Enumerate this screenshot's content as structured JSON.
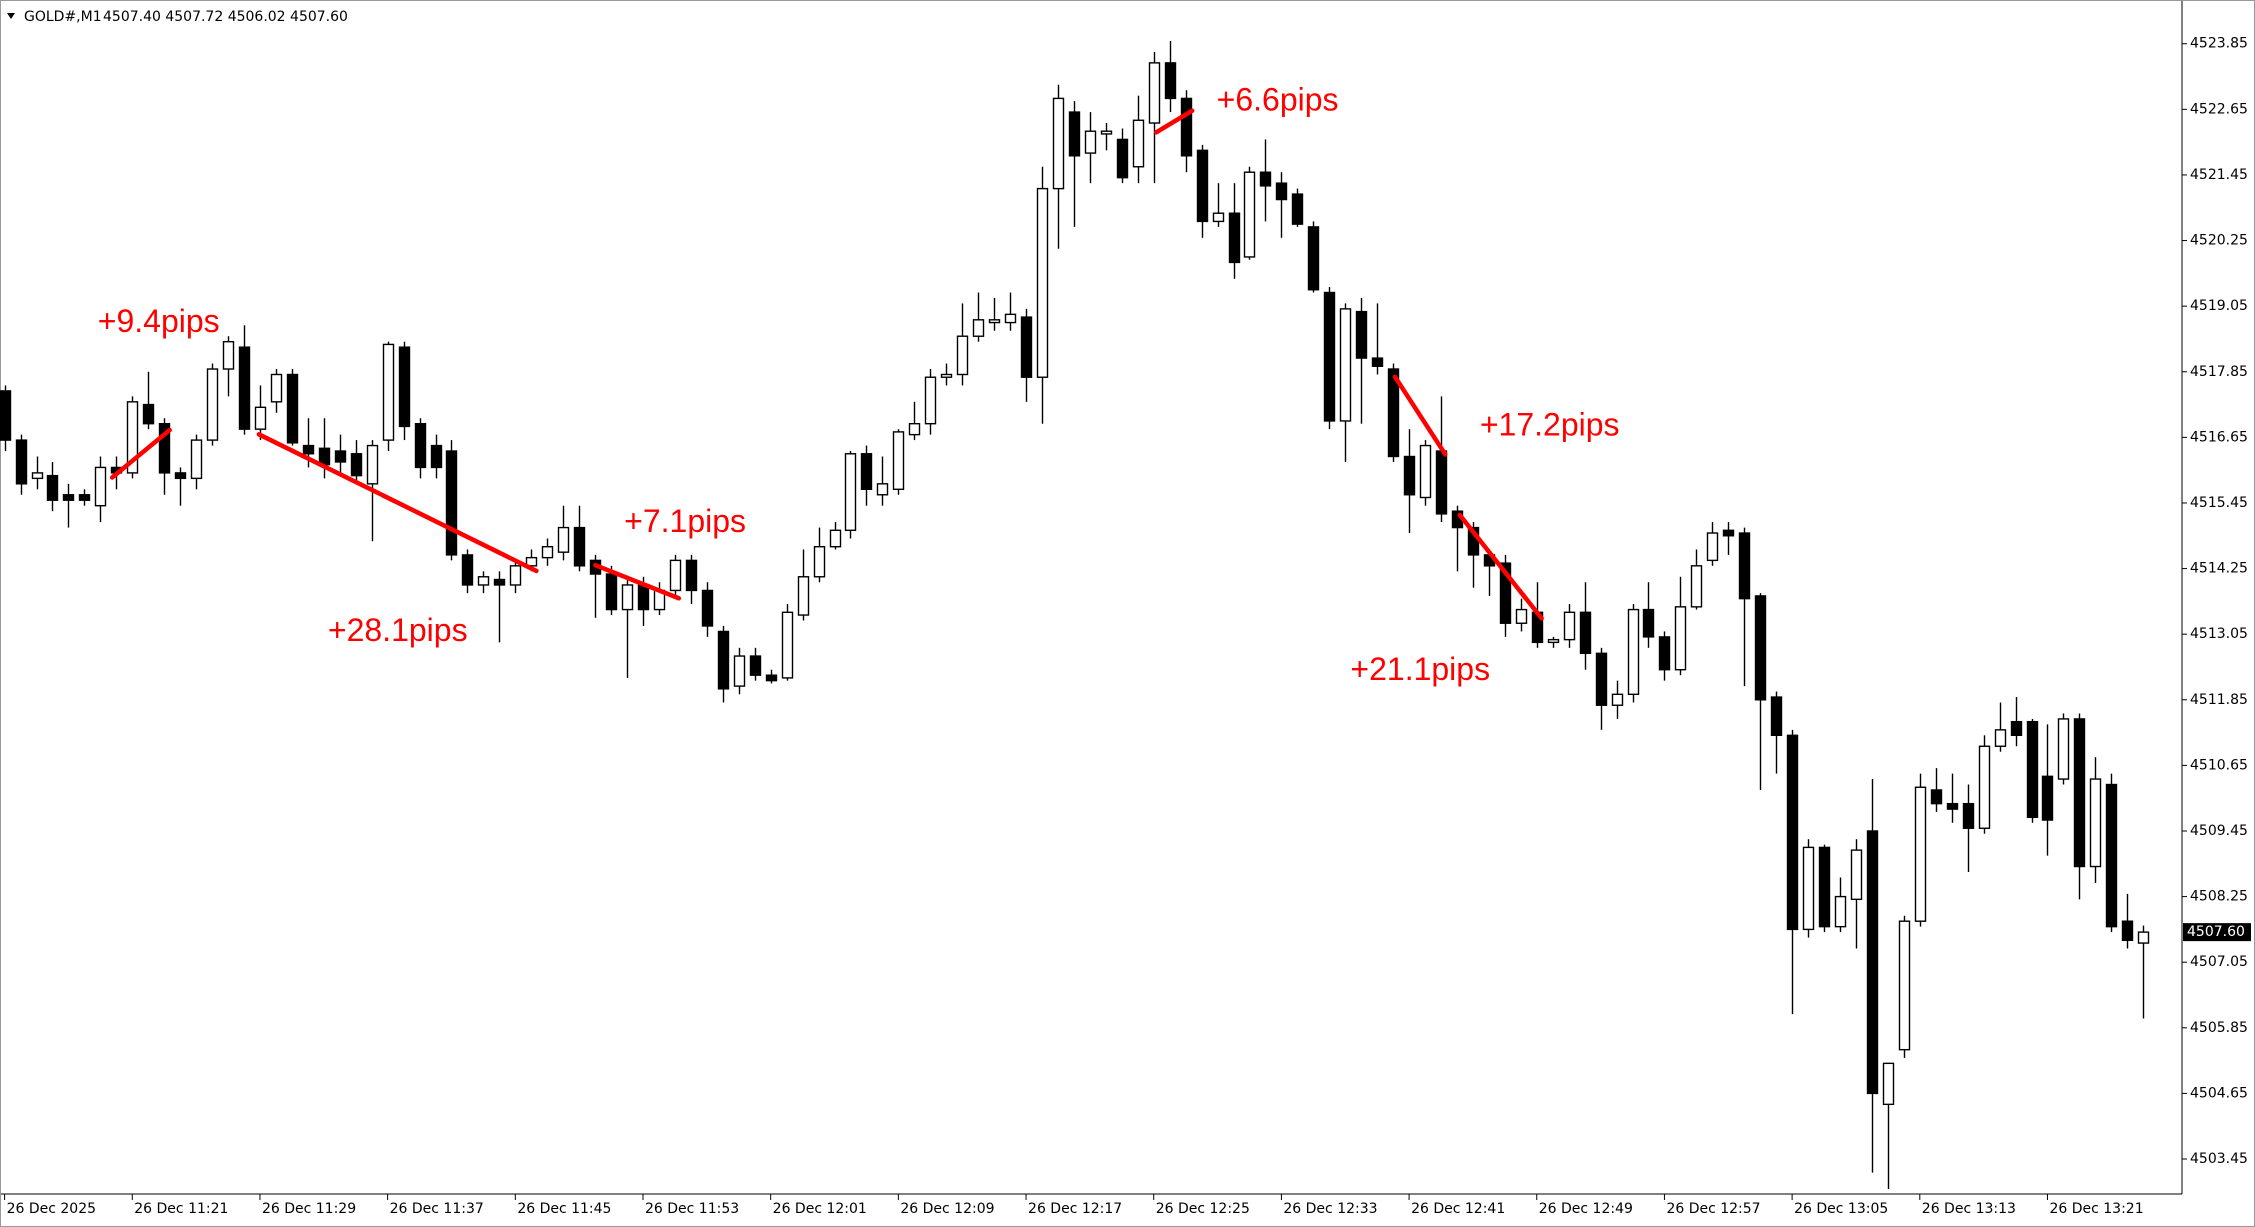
{
  "chart_data": {
    "type": "candlestick",
    "title": "GOLD#,M1",
    "subtitle": "4507.40 4507.72 4506.02 4507.60",
    "categories": [
      "26 Dec 2025",
      null,
      null,
      null,
      null,
      null,
      null,
      null,
      "26 Dec 11:21",
      null,
      null,
      null,
      null,
      null,
      null,
      null,
      "26 Dec 11:29",
      null,
      null,
      null,
      null,
      null,
      null,
      null,
      "26 Dec 11:37",
      null,
      null,
      null,
      null,
      null,
      null,
      null,
      "26 Dec 11:45",
      null,
      null,
      null,
      null,
      null,
      null,
      null,
      "26 Dec 11:53",
      null,
      null,
      null,
      null,
      null,
      null,
      null,
      "26 Dec 12:01",
      null,
      null,
      null,
      null,
      null,
      null,
      null,
      "26 Dec 12:09",
      null,
      null,
      null,
      null,
      null,
      null,
      null,
      "26 Dec 12:17",
      null,
      null,
      null,
      null,
      null,
      null,
      null,
      "26 Dec 12:25",
      null,
      null,
      null,
      null,
      null,
      null,
      null,
      "26 Dec 12:33",
      null,
      null,
      null,
      null,
      null,
      null,
      null,
      "26 Dec 12:41",
      null,
      null,
      null,
      null,
      null,
      null,
      null,
      "26 Dec 12:49",
      null,
      null,
      null,
      null,
      null,
      null,
      null,
      "26 Dec 12:57",
      null,
      null,
      null,
      null,
      null,
      null,
      null,
      "26 Dec 13:05",
      null,
      null,
      null,
      null,
      null,
      null,
      null,
      "26 Dec 13:13",
      null,
      null,
      null,
      null,
      null,
      null,
      null,
      "26 Dec 13:21",
      null,
      null,
      null,
      null,
      null,
      null
    ],
    "open": [
      4517.5,
      4516.6,
      4515.9,
      4515.95,
      4515.6,
      4515.6,
      4515.4,
      4516.1,
      4516.0,
      4517.25,
      4516.9,
      4516.0,
      4515.9,
      4516.6,
      4517.9,
      4518.3,
      4516.8,
      4517.3,
      4517.8,
      4516.5,
      4516.45,
      4516.4,
      4516.35,
      4515.8,
      4516.6,
      4518.3,
      4516.9,
      4516.5,
      4516.4,
      4514.5,
      4513.95,
      4514.05,
      4513.95,
      4514.3,
      4514.45,
      4514.55,
      4515.0,
      4514.4,
      4514.15,
      4513.5,
      4513.95,
      4513.5,
      4513.85,
      4514.4,
      4513.85,
      4513.1,
      4512.1,
      4512.65,
      4512.3,
      4512.25,
      4513.4,
      4514.1,
      4514.65,
      4514.95,
      4516.35,
      4515.6,
      4515.7,
      4516.7,
      4516.9,
      4517.75,
      4517.8,
      4518.5,
      4518.75,
      4518.75,
      4518.85,
      4517.75,
      4521.2,
      4522.6,
      4521.85,
      4522.2,
      4522.1,
      4521.6,
      4522.4,
      4523.5,
      4522.85,
      4521.9,
      4520.6,
      4520.75,
      4519.95,
      4521.5,
      4521.3,
      4521.1,
      4520.5,
      4519.3,
      4516.95,
      4518.95,
      4518.1,
      4517.9,
      4516.3,
      4515.55,
      4516.4,
      4515.3,
      4515.0,
      4514.5,
      4514.35,
      4513.25,
      4513.45,
      4512.9,
      4512.95,
      4513.45,
      4512.7,
      4511.75,
      4511.95,
      4513.5,
      4513.0,
      4512.4,
      4513.55,
      4514.4,
      4514.95,
      4514.9,
      4513.75,
      4511.9,
      4511.2,
      4507.65,
      4509.15,
      4507.7,
      4508.2,
      4509.45,
      4504.45,
      4505.45,
      4507.8,
      4510.2,
      4509.95,
      4509.95,
      4509.5,
      4511.0,
      4511.45,
      4511.45,
      4510.45,
      4510.4,
      4511.5,
      4508.8,
      4510.3,
      4507.8,
      4507.4
    ],
    "high": [
      4517.6,
      4516.7,
      4516.3,
      4516.2,
      4515.8,
      4515.7,
      4516.3,
      4516.3,
      4517.4,
      4517.85,
      4517.0,
      4516.1,
      4516.7,
      4518.0,
      4518.5,
      4518.7,
      4517.6,
      4517.9,
      4517.9,
      4517.0,
      4517.0,
      4516.7,
      4516.6,
      4516.6,
      4518.4,
      4518.4,
      4517.0,
      4516.7,
      4516.6,
      4514.6,
      4514.2,
      4514.2,
      4514.4,
      4514.6,
      4514.8,
      4515.4,
      4515.4,
      4514.5,
      4514.3,
      4514.1,
      4514.1,
      4514.0,
      4514.5,
      4514.5,
      4514.0,
      4513.2,
      4512.8,
      4512.8,
      4512.4,
      4513.6,
      4514.6,
      4515.0,
      4515.1,
      4516.4,
      4516.5,
      4516.3,
      4516.8,
      4517.3,
      4517.9,
      4518.0,
      4519.1,
      4519.3,
      4519.2,
      4519.3,
      4519.0,
      4521.6,
      4523.1,
      4522.8,
      4522.6,
      4522.4,
      4522.3,
      4522.9,
      4523.7,
      4523.9,
      4523.0,
      4522.0,
      4521.3,
      4521.3,
      4521.6,
      4522.1,
      4521.5,
      4521.2,
      4520.6,
      4519.4,
      4519.1,
      4519.2,
      4519.1,
      4518.0,
      4516.8,
      4516.6,
      4517.4,
      4515.4,
      4515.1,
      4514.6,
      4514.5,
      4513.7,
      4514.0,
      4513.0,
      4513.6,
      4514.0,
      4512.8,
      4512.2,
      4513.6,
      4514.0,
      4513.1,
      4514.1,
      4514.6,
      4515.1,
      4515.1,
      4515.0,
      4513.8,
      4512.0,
      4511.3,
      4509.3,
      4509.2,
      4508.6,
      4509.3,
      4510.4,
      4505.2,
      4507.9,
      4510.5,
      4510.6,
      4510.5,
      4510.3,
      4511.2,
      4511.8,
      4511.9,
      4511.5,
      4511.4,
      4511.6,
      4511.6,
      4510.8,
      4510.5,
      4508.3,
      4507.72
    ],
    "low": [
      4516.4,
      4515.6,
      4515.7,
      4515.3,
      4515.0,
      4515.4,
      4515.1,
      4515.7,
      4515.9,
      4516.8,
      4515.6,
      4515.4,
      4515.7,
      4516.5,
      4517.4,
      4516.7,
      4516.6,
      4517.1,
      4516.5,
      4516.1,
      4515.9,
      4516.0,
      4515.8,
      4514.75,
      4516.4,
      4516.6,
      4515.9,
      4515.9,
      4514.4,
      4513.8,
      4513.8,
      4512.9,
      4513.8,
      4514.2,
      4514.3,
      4514.4,
      4514.2,
      4513.35,
      4513.4,
      4512.25,
      4513.2,
      4513.4,
      4513.7,
      4513.6,
      4513.0,
      4511.8,
      4511.95,
      4512.2,
      4512.15,
      4512.2,
      4513.3,
      4514.0,
      4514.6,
      4514.8,
      4515.4,
      4515.4,
      4515.6,
      4516.6,
      4516.7,
      4517.6,
      4517.6,
      4518.4,
      4518.6,
      4518.6,
      4517.3,
      4516.9,
      4520.1,
      4520.5,
      4521.3,
      4521.9,
      4521.3,
      4521.3,
      4521.3,
      4522.6,
      4521.5,
      4520.3,
      4520.5,
      4519.55,
      4519.9,
      4520.6,
      4520.3,
      4520.5,
      4519.3,
      4516.8,
      4516.2,
      4516.9,
      4517.8,
      4516.2,
      4514.9,
      4515.4,
      4515.1,
      4514.2,
      4513.9,
      4513.75,
      4513.0,
      4513.1,
      4512.8,
      4512.8,
      4512.8,
      4512.4,
      4511.3,
      4511.5,
      4511.8,
      4512.8,
      4512.2,
      4512.3,
      4513.5,
      4514.3,
      4514.5,
      4512.1,
      4510.2,
      4510.5,
      4506.1,
      4507.5,
      4507.6,
      4507.6,
      4507.3,
      4503.2,
      4502.9,
      4505.3,
      4507.7,
      4509.8,
      4509.6,
      4508.7,
      4509.4,
      4510.9,
      4511.0,
      4509.6,
      4509.0,
      4510.3,
      4508.2,
      4508.5,
      4507.6,
      4507.3,
      4506.02
    ],
    "close": [
      4516.6,
      4515.8,
      4516.0,
      4515.5,
      4515.5,
      4515.5,
      4516.1,
      4516.0,
      4517.3,
      4516.9,
      4516.0,
      4515.9,
      4516.6,
      4517.9,
      4518.4,
      4516.8,
      4517.2,
      4517.8,
      4516.55,
      4516.35,
      4516.15,
      4516.2,
      4515.95,
      4516.5,
      4518.35,
      4516.85,
      4516.1,
      4516.1,
      4514.5,
      4513.95,
      4514.1,
      4513.95,
      4514.3,
      4514.45,
      4514.65,
      4515.0,
      4514.3,
      4514.15,
      4513.5,
      4513.95,
      4513.5,
      4513.85,
      4514.4,
      4513.85,
      4513.2,
      4512.05,
      4512.65,
      4512.3,
      4512.2,
      4513.45,
      4514.1,
      4514.65,
      4514.95,
      4516.35,
      4515.7,
      4515.8,
      4516.75,
      4516.9,
      4517.75,
      4517.8,
      4518.5,
      4518.8,
      4518.8,
      4518.9,
      4517.75,
      4521.2,
      4522.85,
      4521.8,
      4522.25,
      4522.25,
      4521.4,
      4522.45,
      4523.5,
      4522.85,
      4521.8,
      4520.6,
      4520.75,
      4519.85,
      4521.5,
      4521.25,
      4521.0,
      4520.55,
      4519.35,
      4516.95,
      4519.0,
      4518.1,
      4517.95,
      4516.3,
      4515.6,
      4516.5,
      4515.25,
      4515.0,
      4514.5,
      4514.3,
      4513.25,
      4513.5,
      4512.9,
      4512.95,
      4513.45,
      4512.7,
      4511.75,
      4511.95,
      4513.5,
      4513.0,
      4512.4,
      4513.55,
      4514.3,
      4514.9,
      4514.85,
      4513.7,
      4511.85,
      4511.2,
      4507.65,
      4509.15,
      4507.7,
      4508.25,
      4509.1,
      4504.65,
      4505.2,
      4507.8,
      4510.25,
      4509.95,
      4509.85,
      4509.5,
      4511.0,
      4511.3,
      4511.2,
      4509.7,
      4509.65,
      4511.5,
      4508.8,
      4510.4,
      4507.7,
      4507.45,
      4507.6
    ],
    "up_color": "#ffffff",
    "down_color": "#000000",
    "ylim": [
      4502.81,
      4524.65
    ],
    "yticks": [
      4523.85,
      4522.65,
      4521.45,
      4520.25,
      4519.05,
      4517.85,
      4516.65,
      4515.45,
      4514.25,
      4513.05,
      4511.85,
      4510.65,
      4509.45,
      4508.25,
      4507.05,
      4505.85,
      4504.65,
      4503.45
    ],
    "last_price": {
      "value": 4507.6,
      "label": "4507.60"
    },
    "grid": false,
    "annotations": [
      "+9.4pips",
      "+28.1pips",
      "+7.1pips",
      "+6.6pips",
      "+17.2pips",
      "+21.1pips"
    ],
    "annotation_color": "#ff0000"
  }
}
